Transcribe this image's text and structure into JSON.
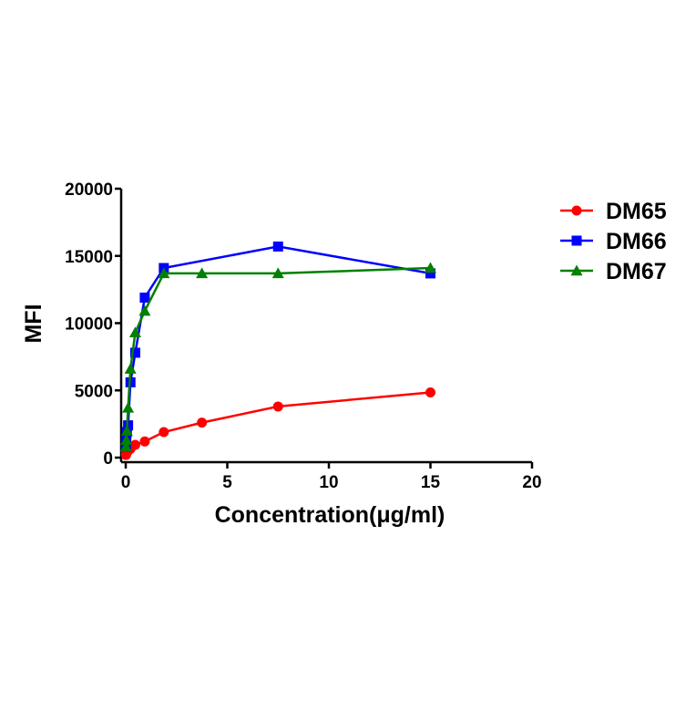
{
  "chart_data": {
    "type": "line",
    "xlabel": "Concentration(μg/ml)",
    "ylabel": "MFI",
    "xlim": [
      0,
      20
    ],
    "ylim": [
      0,
      20000
    ],
    "x_ticks": [
      0,
      5,
      10,
      15,
      20
    ],
    "y_ticks": [
      0,
      5000,
      10000,
      15000,
      20000
    ],
    "x_tick_labels": [
      "0",
      "5",
      "10",
      "15",
      "20"
    ],
    "y_tick_labels": [
      "0",
      "5000",
      "10000",
      "15000",
      "20000"
    ],
    "grid": false,
    "legend_position": "right",
    "series": [
      {
        "name": "DM65",
        "color": "#ff0000",
        "marker": "circle",
        "x": [
          0.0146,
          0.0293,
          0.0586,
          0.117,
          0.234,
          0.469,
          0.938,
          1.875,
          3.75,
          7.5,
          15
        ],
        "y": [
          200,
          300,
          400,
          500,
          650,
          950,
          1200,
          1900,
          2600,
          3800,
          4850
        ]
      },
      {
        "name": "DM66",
        "color": "#0000ff",
        "marker": "square",
        "x": [
          0.0146,
          0.0293,
          0.0586,
          0.117,
          0.234,
          0.469,
          0.938,
          1.875,
          7.5,
          15
        ],
        "y": [
          800,
          1300,
          1900,
          2400,
          5600,
          7800,
          11900,
          14100,
          15700,
          13700
        ]
      },
      {
        "name": "DM67",
        "color": "#008000",
        "marker": "triangle",
        "x": [
          0.0146,
          0.0293,
          0.0586,
          0.117,
          0.234,
          0.469,
          0.938,
          1.875,
          3.75,
          7.5,
          15
        ],
        "y": [
          800,
          1300,
          2000,
          3700,
          6600,
          9300,
          10900,
          13700,
          13700,
          13700,
          14100
        ]
      }
    ]
  }
}
